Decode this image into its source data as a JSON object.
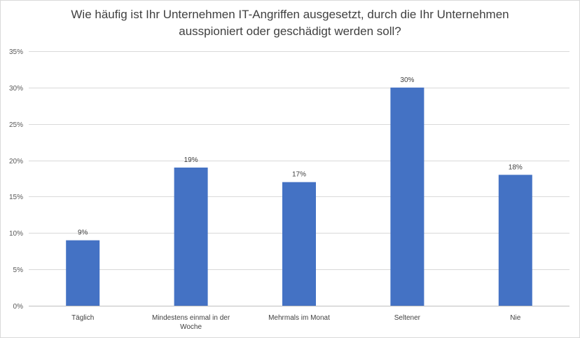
{
  "chart_data": {
    "type": "bar",
    "title": "Wie häufig ist Ihr Unternehmen IT-Angriffen ausgesetzt, durch die Ihr Unternehmen ausspioniert oder geschädigt werden soll?",
    "categories": [
      "Täglich",
      "Mindestens einmal in der Woche",
      "Mehrmals im Monat",
      "Seltener",
      "Nie"
    ],
    "values": [
      9,
      19,
      17,
      30,
      18
    ],
    "data_labels": [
      "9%",
      "19%",
      "17%",
      "30%",
      "18%"
    ],
    "ylim": [
      0,
      35
    ],
    "yticks": [
      0,
      5,
      10,
      15,
      20,
      25,
      30,
      35
    ],
    "ytick_labels": [
      "0%",
      "5%",
      "10%",
      "15%",
      "20%",
      "25%",
      "30%",
      "35%"
    ],
    "xlabel": "",
    "ylabel": "",
    "grid": true,
    "legend": "none",
    "bar_color": "#4472c4",
    "grid_color": "#d9d9d9"
  }
}
